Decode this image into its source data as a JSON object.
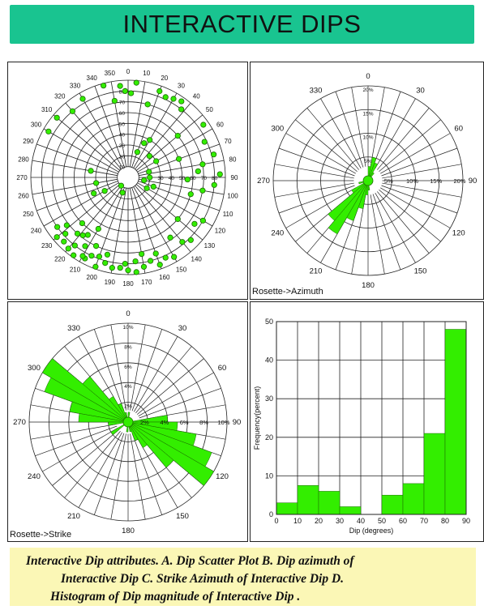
{
  "title": "INTERACTIVE DIPS",
  "caption": {
    "line1": "Interactive Dip attributes. A. Dip Scatter Plot B. Dip azimuth of",
    "line2": "Interactive Dip C. Strike Azimuth of Interactive Dip D.",
    "line3": "Histogram of Dip magnitude of Interactive Dip ."
  },
  "colors": {
    "accent": "#19c490",
    "fill": "#33ee00",
    "caption_bg": "#fbf7b6"
  },
  "chart_data": [
    {
      "id": "A",
      "type": "scatter",
      "coordinate_system": "polar",
      "azimuth_labels": [
        "0",
        "10",
        "20",
        "30",
        "40",
        "50",
        "60",
        "70",
        "80",
        "90",
        "100",
        "110",
        "120",
        "130",
        "140",
        "150",
        "160",
        "170",
        "180",
        "190",
        "200",
        "210",
        "220",
        "230",
        "240",
        "250",
        "260",
        "270",
        "280",
        "290",
        "300",
        "310",
        "320",
        "330",
        "340",
        "350"
      ],
      "radial_ticks_north": [
        "10",
        "20",
        "30",
        "40",
        "50",
        "60",
        "70",
        "80"
      ],
      "radial_ticks_east": [
        "30",
        "40",
        "50",
        "60",
        "70",
        "80"
      ],
      "points": [
        {
          "az": 355,
          "dip": 85
        },
        {
          "az": 358,
          "dip": 80
        },
        {
          "az": 2,
          "dip": 78
        },
        {
          "az": 5,
          "dip": 88
        },
        {
          "az": 350,
          "dip": 72
        },
        {
          "az": 20,
          "dip": 85
        },
        {
          "az": 25,
          "dip": 82
        },
        {
          "az": 30,
          "dip": 84
        },
        {
          "az": 35,
          "dip": 86
        },
        {
          "az": 38,
          "dip": 80
        },
        {
          "az": 330,
          "dip": 84
        },
        {
          "az": 320,
          "dip": 80
        },
        {
          "az": 310,
          "dip": 86
        },
        {
          "az": 300,
          "dip": 85
        },
        {
          "az": 75,
          "dip": 82
        },
        {
          "az": 80,
          "dip": 70
        },
        {
          "az": 85,
          "dip": 65
        },
        {
          "az": 92,
          "dip": 55
        },
        {
          "az": 95,
          "dip": 80
        },
        {
          "az": 88,
          "dip": 85
        },
        {
          "az": 70,
          "dip": 50
        },
        {
          "az": 60,
          "dip": 30
        },
        {
          "az": 75,
          "dip": 20
        },
        {
          "az": 90,
          "dip": 20
        },
        {
          "az": 100,
          "dip": 15
        },
        {
          "az": 110,
          "dip": 25
        },
        {
          "az": 120,
          "dip": 20
        },
        {
          "az": 200,
          "dip": 15
        },
        {
          "az": 220,
          "dip": 10
        },
        {
          "az": 260,
          "dip": 30
        },
        {
          "az": 280,
          "dip": 35
        },
        {
          "az": 20,
          "dip": 25
        },
        {
          "az": 25,
          "dip": 35
        },
        {
          "az": 30,
          "dip": 40
        },
        {
          "az": 45,
          "dip": 28
        },
        {
          "az": 240,
          "dip": 25
        },
        {
          "az": 245,
          "dip": 35
        },
        {
          "az": 120,
          "dip": 80
        },
        {
          "az": 125,
          "dip": 75
        },
        {
          "az": 130,
          "dip": 60
        },
        {
          "az": 140,
          "dip": 78
        },
        {
          "az": 150,
          "dip": 85
        },
        {
          "az": 145,
          "dip": 68
        },
        {
          "az": 160,
          "dip": 86
        },
        {
          "az": 165,
          "dip": 80
        },
        {
          "az": 170,
          "dip": 84
        },
        {
          "az": 175,
          "dip": 88
        },
        {
          "az": 180,
          "dip": 86
        },
        {
          "az": 182,
          "dip": 80
        },
        {
          "az": 185,
          "dip": 84
        },
        {
          "az": 190,
          "dip": 85
        },
        {
          "az": 195,
          "dip": 82
        },
        {
          "az": 200,
          "dip": 88
        },
        {
          "az": 205,
          "dip": 80
        },
        {
          "az": 208,
          "dip": 85
        },
        {
          "az": 210,
          "dip": 84
        },
        {
          "az": 212,
          "dip": 75
        },
        {
          "az": 215,
          "dip": 88
        },
        {
          "az": 218,
          "dip": 80
        },
        {
          "az": 220,
          "dip": 86
        },
        {
          "az": 222,
          "dip": 70
        },
        {
          "az": 225,
          "dip": 84
        },
        {
          "az": 228,
          "dip": 78
        },
        {
          "az": 230,
          "dip": 86
        },
        {
          "az": 232,
          "dip": 72
        },
        {
          "az": 235,
          "dip": 80
        },
        {
          "az": 215,
          "dip": 65
        },
        {
          "az": 205,
          "dip": 70
        },
        {
          "az": 195,
          "dip": 74
        },
        {
          "az": 225,
          "dip": 60
        },
        {
          "az": 210,
          "dip": 55
        },
        {
          "az": 218,
          "dip": 68
        },
        {
          "az": 200,
          "dip": 78
        },
        {
          "az": 170,
          "dip": 72
        },
        {
          "az": 175,
          "dip": 78
        },
        {
          "az": 160,
          "dip": 75
        },
        {
          "az": 155,
          "dip": 82
        },
        {
          "az": 135,
          "dip": 82
        },
        {
          "az": 100,
          "dip": 70
        },
        {
          "az": 105,
          "dip": 60
        },
        {
          "az": 65,
          "dip": 78
        },
        {
          "az": 55,
          "dip": 85
        },
        {
          "az": 345,
          "dip": 88
        },
        {
          "az": 15,
          "dip": 70
        },
        {
          "az": 50,
          "dip": 60
        }
      ]
    },
    {
      "id": "B",
      "type": "rose",
      "name": "Rosette->Azimuth",
      "azimuth_labels": [
        "0",
        "30",
        "60",
        "90",
        "120",
        "150",
        "180",
        "210",
        "240",
        "270",
        "300",
        "330"
      ],
      "radial_labels": [
        "5%",
        "10%",
        "15%",
        "20%"
      ],
      "rmax": 20,
      "bins": [
        {
          "from": 0,
          "to": 10,
          "value": 3
        },
        {
          "from": 10,
          "to": 20,
          "value": 5
        },
        {
          "from": 20,
          "to": 30,
          "value": 4
        },
        {
          "from": 30,
          "to": 40,
          "value": 2
        },
        {
          "from": 40,
          "to": 50,
          "value": 1
        },
        {
          "from": 90,
          "to": 100,
          "value": 1
        },
        {
          "from": 160,
          "to": 170,
          "value": 1
        },
        {
          "from": 170,
          "to": 180,
          "value": 2
        },
        {
          "from": 180,
          "to": 190,
          "value": 3
        },
        {
          "from": 190,
          "to": 200,
          "value": 6
        },
        {
          "from": 200,
          "to": 210,
          "value": 9
        },
        {
          "from": 210,
          "to": 220,
          "value": 13
        },
        {
          "from": 220,
          "to": 230,
          "value": 11
        },
        {
          "from": 230,
          "to": 240,
          "value": 4
        },
        {
          "from": 250,
          "to": 260,
          "value": 2
        },
        {
          "from": 300,
          "to": 310,
          "value": 1
        },
        {
          "from": 340,
          "to": 350,
          "value": 1
        }
      ]
    },
    {
      "id": "C",
      "type": "rose",
      "name": "Rosette->Strike",
      "azimuth_labels": [
        "0",
        "30",
        "60",
        "90",
        "120",
        "150",
        "180",
        "210",
        "240",
        "270",
        "300",
        "330"
      ],
      "radial_labels": [
        "2%",
        "4%",
        "6%",
        "8%",
        "10%"
      ],
      "rmax": 10,
      "bins": [
        {
          "from": 290,
          "to": 300,
          "value": 9
        },
        {
          "from": 300,
          "to": 310,
          "value": 10
        },
        {
          "from": 310,
          "to": 320,
          "value": 6
        },
        {
          "from": 320,
          "to": 330,
          "value": 3
        },
        {
          "from": 280,
          "to": 290,
          "value": 6
        },
        {
          "from": 270,
          "to": 280,
          "value": 5
        },
        {
          "from": 260,
          "to": 270,
          "value": 2
        },
        {
          "from": 330,
          "to": 340,
          "value": 2
        },
        {
          "from": 340,
          "to": 350,
          "value": 1
        },
        {
          "from": 0,
          "to": 10,
          "value": 1
        },
        {
          "from": 80,
          "to": 90,
          "value": 4
        },
        {
          "from": 90,
          "to": 100,
          "value": 5
        },
        {
          "from": 100,
          "to": 110,
          "value": 7
        },
        {
          "from": 110,
          "to": 120,
          "value": 9
        },
        {
          "from": 120,
          "to": 130,
          "value": 10
        },
        {
          "from": 130,
          "to": 140,
          "value": 6
        },
        {
          "from": 140,
          "to": 150,
          "value": 3
        },
        {
          "from": 150,
          "to": 160,
          "value": 2
        },
        {
          "from": 160,
          "to": 170,
          "value": 1
        },
        {
          "from": 180,
          "to": 190,
          "value": 1
        },
        {
          "from": 230,
          "to": 240,
          "value": 2
        }
      ]
    },
    {
      "id": "D",
      "type": "bar",
      "ylabel": "Frequency(percent)",
      "xlabel": "Dip (degrees)",
      "xticks": [
        "0",
        "10",
        "20",
        "30",
        "40",
        "50",
        "60",
        "70",
        "80",
        "90"
      ],
      "yticks": [
        "0",
        "10",
        "20",
        "30",
        "40",
        "50"
      ],
      "ylim": [
        0,
        50
      ],
      "bins": [
        {
          "from": 0,
          "to": 10,
          "value": 3
        },
        {
          "from": 10,
          "to": 20,
          "value": 7.5
        },
        {
          "from": 20,
          "to": 30,
          "value": 6
        },
        {
          "from": 30,
          "to": 40,
          "value": 2
        },
        {
          "from": 40,
          "to": 50,
          "value": 0
        },
        {
          "from": 50,
          "to": 60,
          "value": 5
        },
        {
          "from": 60,
          "to": 70,
          "value": 8
        },
        {
          "from": 70,
          "to": 80,
          "value": 21
        },
        {
          "from": 80,
          "to": 90,
          "value": 48
        }
      ]
    }
  ]
}
